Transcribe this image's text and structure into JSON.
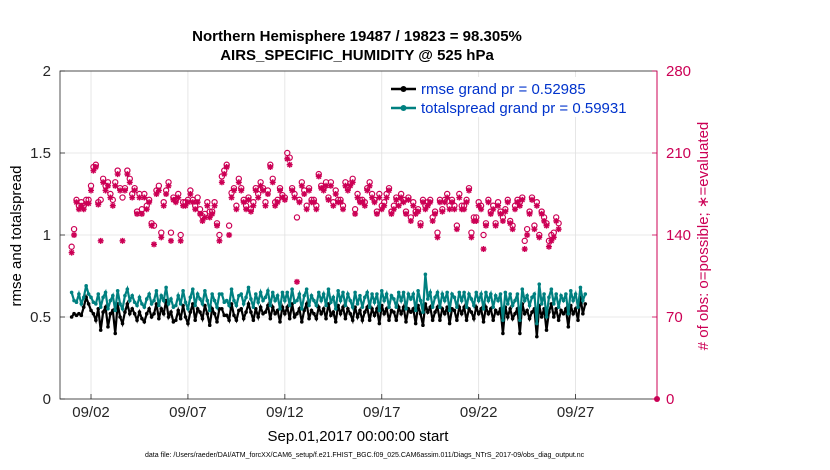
{
  "chart_data": {
    "type": "line",
    "title": "Northern Hemisphere 19487 / 19823 = 98.305%",
    "subtitle": "AIRS_SPECIFIC_HUMIDITY @ 525 hPa",
    "xlabel": "Sep.01,2017 00:00:00 start",
    "ylabel_left": "rmse and totalspread",
    "ylabel_right": "# of obs: o=possible; ∗=evaluated",
    "footnote": "data file: /Users/raeder/DAI/ATM_forcXX/CAM6_setup/f.e21.FHIST_BGC.f09_025.CAM6assim.011/Diags_NTrS_2017-09/obs_diag_output.nc",
    "x_range_days": [
      0.4,
      31.2
    ],
    "ylim_left": [
      0,
      2
    ],
    "ylim_right": [
      0,
      280
    ],
    "x_tick_labels": [
      "09/02",
      "09/07",
      "09/12",
      "09/17",
      "09/22",
      "09/27"
    ],
    "x_tick_days": [
      2,
      7,
      12,
      17,
      22,
      27
    ],
    "y_left_tick_labels": [
      "0",
      "0.5",
      "1",
      "1.5",
      "2"
    ],
    "y_left_ticks": [
      0,
      0.5,
      1,
      1.5,
      2
    ],
    "y_right_tick_labels": [
      "0",
      "70",
      "140",
      "210",
      "280"
    ],
    "y_right_ticks": [
      0,
      70,
      140,
      210,
      280
    ],
    "t_start_day": 1.0,
    "t_step_day": 0.125,
    "series": [
      {
        "name": "rmse grand pr = 0.52985",
        "color": "#000000",
        "axis": "left",
        "values": [
          0.5,
          0.52,
          0.51,
          0.52,
          0.51,
          0.56,
          0.62,
          0.58,
          0.54,
          0.52,
          0.48,
          0.55,
          0.42,
          0.53,
          0.56,
          0.44,
          0.52,
          0.54,
          0.4,
          0.58,
          0.5,
          0.46,
          0.53,
          0.58,
          0.52,
          0.55,
          0.52,
          0.48,
          0.53,
          0.49,
          0.47,
          0.52,
          0.55,
          0.5,
          0.52,
          0.58,
          0.49,
          0.55,
          0.52,
          0.6,
          0.5,
          0.53,
          0.47,
          0.48,
          0.54,
          0.49,
          0.57,
          0.5,
          0.46,
          0.53,
          0.58,
          0.48,
          0.55,
          0.53,
          0.49,
          0.57,
          0.52,
          0.45,
          0.55,
          0.52,
          0.47,
          0.55,
          0.55,
          0.51,
          0.51,
          0.48,
          0.58,
          0.51,
          0.48,
          0.54,
          0.55,
          0.49,
          0.53,
          0.58,
          0.53,
          0.48,
          0.55,
          0.5,
          0.56,
          0.52,
          0.53,
          0.57,
          0.49,
          0.56,
          0.52,
          0.54,
          0.47,
          0.56,
          0.52,
          0.56,
          0.49,
          0.58,
          0.5,
          0.52,
          0.55,
          0.47,
          0.54,
          0.58,
          0.49,
          0.54,
          0.52,
          0.49,
          0.56,
          0.52,
          0.55,
          0.49,
          0.58,
          0.51,
          0.53,
          0.47,
          0.57,
          0.52,
          0.56,
          0.49,
          0.55,
          0.52,
          0.48,
          0.56,
          0.5,
          0.54,
          0.48,
          0.53,
          0.56,
          0.48,
          0.55,
          0.51,
          0.55,
          0.46,
          0.57,
          0.52,
          0.55,
          0.48,
          0.54,
          0.53,
          0.48,
          0.56,
          0.52,
          0.56,
          0.47,
          0.55,
          0.53,
          0.55,
          0.46,
          0.57,
          0.52,
          0.45,
          0.58,
          0.53,
          0.56,
          0.48,
          0.53,
          0.56,
          0.48,
          0.55,
          0.52,
          0.56,
          0.46,
          0.55,
          0.54,
          0.48,
          0.56,
          0.52,
          0.56,
          0.48,
          0.55,
          0.53,
          0.49,
          0.56,
          0.52,
          0.55,
          0.47,
          0.56,
          0.52,
          0.55,
          0.48,
          0.54,
          0.52,
          0.55,
          0.4,
          0.56,
          0.5,
          0.55,
          0.49,
          0.52,
          0.55,
          0.4,
          0.58,
          0.52,
          0.54,
          0.49,
          0.53,
          0.55,
          0.38,
          0.57,
          0.5,
          0.55,
          0.42,
          0.53,
          0.58,
          0.5,
          0.55,
          0.48,
          0.54,
          0.52,
          0.55,
          0.44,
          0.57,
          0.52,
          0.55,
          0.48,
          0.62,
          0.52,
          0.58
        ]
      },
      {
        "name": "totalspread grand pr = 0.59931",
        "color": "#008080",
        "axis": "left",
        "values": [
          0.65,
          0.6,
          0.59,
          0.64,
          0.58,
          0.62,
          0.69,
          0.64,
          0.62,
          0.59,
          0.58,
          0.64,
          0.56,
          0.62,
          0.65,
          0.55,
          0.6,
          0.63,
          0.54,
          0.66,
          0.58,
          0.55,
          0.63,
          0.67,
          0.6,
          0.63,
          0.59,
          0.57,
          0.62,
          0.58,
          0.56,
          0.61,
          0.64,
          0.58,
          0.6,
          0.66,
          0.57,
          0.63,
          0.6,
          0.68,
          0.58,
          0.61,
          0.56,
          0.57,
          0.63,
          0.58,
          0.66,
          0.59,
          0.55,
          0.62,
          0.67,
          0.57,
          0.64,
          0.61,
          0.58,
          0.66,
          0.6,
          0.54,
          0.64,
          0.6,
          0.56,
          0.64,
          0.64,
          0.59,
          0.6,
          0.57,
          0.67,
          0.6,
          0.57,
          0.63,
          0.64,
          0.58,
          0.62,
          0.68,
          0.61,
          0.56,
          0.64,
          0.59,
          0.65,
          0.6,
          0.62,
          0.66,
          0.57,
          0.65,
          0.6,
          0.63,
          0.55,
          0.65,
          0.6,
          0.65,
          0.57,
          0.67,
          0.59,
          0.6,
          0.64,
          0.55,
          0.63,
          0.67,
          0.57,
          0.63,
          0.6,
          0.57,
          0.65,
          0.6,
          0.64,
          0.57,
          0.67,
          0.59,
          0.62,
          0.55,
          0.66,
          0.6,
          0.65,
          0.57,
          0.64,
          0.6,
          0.56,
          0.65,
          0.58,
          0.63,
          0.56,
          0.62,
          0.65,
          0.56,
          0.64,
          0.59,
          0.64,
          0.54,
          0.66,
          0.6,
          0.64,
          0.56,
          0.63,
          0.61,
          0.56,
          0.65,
          0.6,
          0.65,
          0.55,
          0.64,
          0.61,
          0.64,
          0.54,
          0.66,
          0.6,
          0.53,
          0.76,
          0.61,
          0.65,
          0.56,
          0.62,
          0.65,
          0.56,
          0.64,
          0.6,
          0.65,
          0.54,
          0.64,
          0.62,
          0.56,
          0.65,
          0.6,
          0.65,
          0.56,
          0.64,
          0.61,
          0.57,
          0.65,
          0.6,
          0.64,
          0.55,
          0.65,
          0.6,
          0.64,
          0.56,
          0.63,
          0.6,
          0.64,
          0.48,
          0.65,
          0.58,
          0.64,
          0.57,
          0.6,
          0.64,
          0.48,
          0.67,
          0.6,
          0.63,
          0.57,
          0.62,
          0.64,
          0.46,
          0.7,
          0.58,
          0.64,
          0.5,
          0.62,
          0.67,
          0.58,
          0.64,
          0.56,
          0.63,
          0.6,
          0.64,
          0.52,
          0.66,
          0.6,
          0.64,
          0.56,
          0.68,
          0.6,
          0.64
        ]
      },
      {
        "name": "possible",
        "marker": "o",
        "color": "#cc0055",
        "axis": "right",
        "values": [
          130,
          145,
          170,
          165,
          168,
          165,
          170,
          170,
          182,
          198,
          200,
          168,
          170,
          188,
          182,
          185,
          175,
          170,
          185,
          195,
          180,
          172,
          180,
          195,
          188,
          175,
          180,
          160,
          175,
          162,
          175,
          165,
          170,
          150,
          148,
          178,
          182,
          142,
          168,
          178,
          185,
          142,
          172,
          170,
          175,
          140,
          168,
          168,
          170,
          178,
          170,
          165,
          172,
          162,
          156,
          158,
          168,
          160,
          160,
          168,
          150,
          140,
          190,
          195,
          200,
          148,
          176,
          180,
          165,
          188,
          180,
          170,
          165,
          172,
          162,
          168,
          180,
          175,
          185,
          180,
          168,
          178,
          200,
          188,
          168,
          170,
          180,
          174,
          172,
          210,
          206,
          180,
          175,
          155,
          170,
          185,
          178,
          165,
          180,
          170,
          170,
          165,
          192,
          182,
          180,
          185,
          172,
          185,
          168,
          178,
          170,
          170,
          165,
          185,
          180,
          184,
          188,
          162,
          175,
          170,
          170,
          168,
          180,
          185,
          175,
          170,
          160,
          175,
          165,
          168,
          175,
          180,
          160,
          165,
          172,
          168,
          175,
          170,
          160,
          172,
          155,
          168,
          160,
          162,
          150,
          170,
          165,
          168,
          170,
          155,
          160,
          142,
          170,
          162,
          170,
          175,
          165,
          170,
          165,
          148,
          175,
          165,
          165,
          170,
          180,
          142,
          155,
          155,
          168,
          165,
          140,
          150,
          170,
          160,
          165,
          150,
          168,
          160,
          155,
          162,
          170,
          152,
          148,
          165,
          170,
          168,
          172,
          135,
          145,
          160,
          172,
          148,
          168,
          140,
          160,
          155,
          150,
          135,
          140,
          142,
          155,
          150
        ]
      },
      {
        "name": "evaluated",
        "marker": "*",
        "color": "#cc0055",
        "axis": "right",
        "values": [
          125,
          140,
          168,
          162,
          165,
          162,
          167,
          167,
          178,
          195,
          198,
          166,
          135,
          185,
          178,
          182,
          172,
          165,
          182,
          192,
          178,
          135,
          178,
          192,
          185,
          172,
          178,
          158,
          172,
          158,
          172,
          162,
          168,
          148,
          132,
          175,
          178,
          138,
          165,
          175,
          182,
          135,
          170,
          168,
          172,
          135,
          165,
          165,
          168,
          175,
          168,
          162,
          168,
          158,
          152,
          155,
          165,
          155,
          158,
          165,
          148,
          135,
          185,
          192,
          198,
          140,
          172,
          178,
          162,
          185,
          178,
          168,
          162,
          170,
          160,
          165,
          178,
          172,
          182,
          178,
          165,
          175,
          198,
          185,
          165,
          168,
          178,
          172,
          170,
          205,
          200,
          178,
          172,
          100,
          168,
          182,
          175,
          162,
          178,
          168,
          168,
          162,
          190,
          180,
          178,
          182,
          170,
          182,
          165,
          175,
          168,
          168,
          162,
          182,
          178,
          182,
          185,
          158,
          172,
          168,
          168,
          165,
          178,
          182,
          172,
          168,
          158,
          172,
          162,
          165,
          172,
          178,
          158,
          162,
          170,
          165,
          172,
          168,
          158,
          170,
          152,
          165,
          158,
          160,
          148,
          168,
          162,
          165,
          168,
          152,
          158,
          138,
          168,
          160,
          168,
          172,
          162,
          168,
          162,
          145,
          172,
          162,
          162,
          168,
          178,
          138,
          152,
          152,
          165,
          162,
          128,
          148,
          168,
          158,
          162,
          148,
          165,
          158,
          152,
          160,
          168,
          150,
          145,
          162,
          168,
          165,
          170,
          128,
          140,
          158,
          170,
          145,
          165,
          138,
          158,
          152,
          148,
          130,
          135,
          138,
          152,
          145
        ]
      }
    ]
  }
}
